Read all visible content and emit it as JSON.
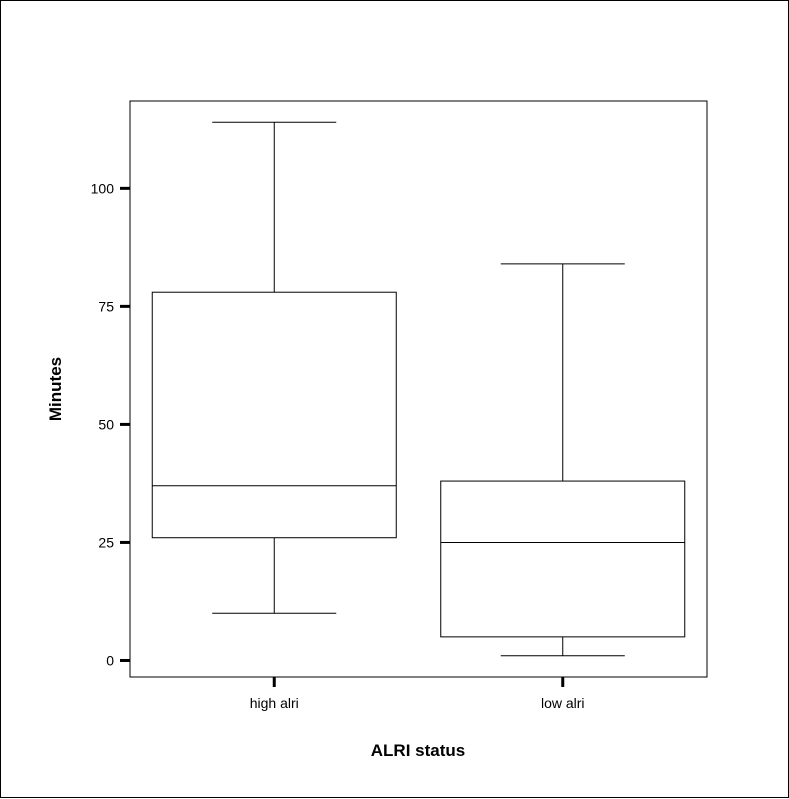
{
  "chart_data": {
    "type": "box",
    "xlabel": "ALRI status",
    "ylabel": "Minutes",
    "categories": [
      "high alri",
      "low alri"
    ],
    "boxes": [
      {
        "category": "high alri",
        "min": 10,
        "q1": 26,
        "median": 37,
        "q3": 78,
        "max": 114
      },
      {
        "category": "low alri",
        "min": 1,
        "q1": 5,
        "median": 25,
        "q3": 38,
        "max": 84
      }
    ],
    "yticks": [
      0,
      25,
      50,
      75,
      100
    ],
    "ytick_labels": [
      "0",
      "25",
      "50",
      "75",
      "100"
    ],
    "ylim": [
      -3.5,
      118.5
    ],
    "grid": false
  }
}
